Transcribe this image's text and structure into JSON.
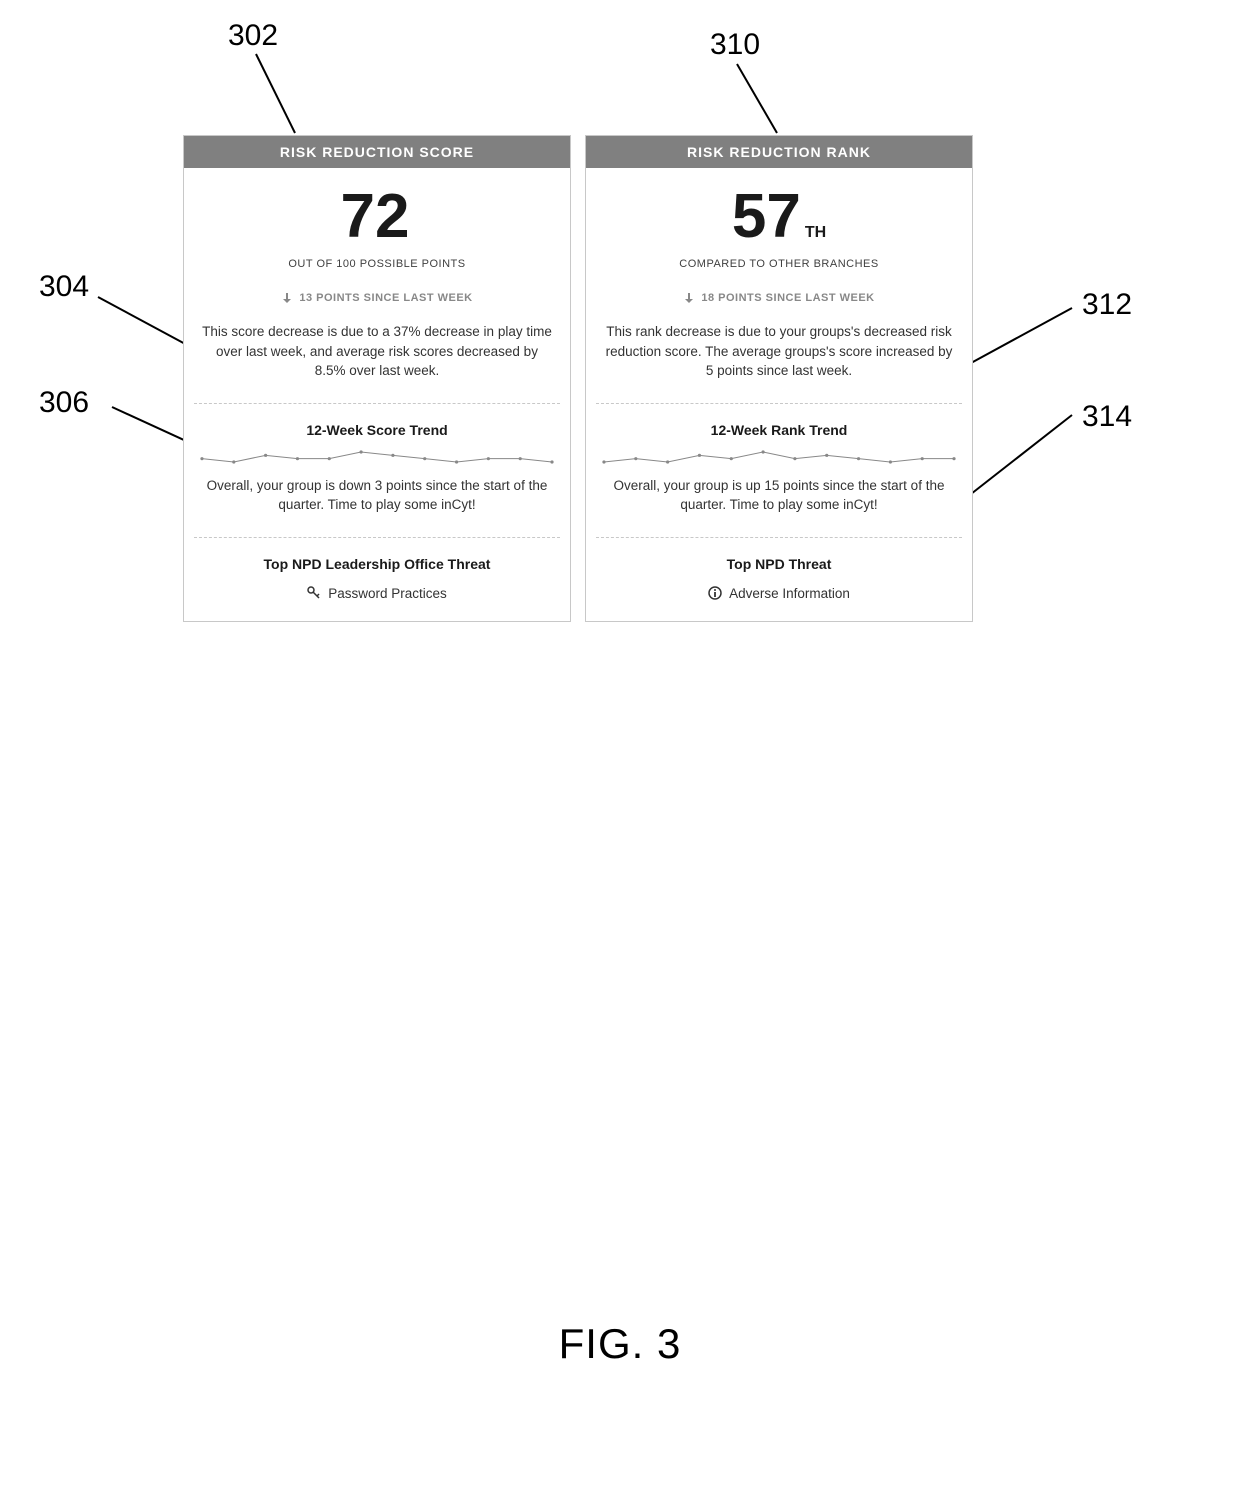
{
  "figure_caption": "FIG. 3",
  "callouts": {
    "c302": "302",
    "c304": "304",
    "c306": "306",
    "c310": "310",
    "c312": "312",
    "c314": "314"
  },
  "score_card": {
    "header": "RISK REDUCTION SCORE",
    "value": "72",
    "value_suffix": "",
    "subtitle": "OUT OF 100 POSSIBLE POINTS",
    "points_change": "13 POINTS SINCE LAST WEEK",
    "explanation": "This score decrease is due to a 37% decrease in play time over last week, and average risk scores decreased by 8.5% over last week.",
    "trend_title": "12-Week Score Trend",
    "trend_points": [
      72,
      71,
      73,
      72,
      72,
      74,
      73,
      72,
      71,
      72,
      72,
      71
    ],
    "trend_color": "#888888",
    "trend_text": "Overall, your group is down 3 points since the start of the quarter. Time to play some inCyt!",
    "threat_title": "Top NPD Leadership Office Threat",
    "threat_label": "Password Practices"
  },
  "rank_card": {
    "header": "RISK REDUCTION RANK",
    "value": "57",
    "value_suffix": "TH",
    "subtitle": "COMPARED TO OTHER BRANCHES",
    "points_change": "18 POINTS SINCE LAST WEEK",
    "explanation": "This rank decrease is due to your groups's decreased risk reduction score. The average groups's score increased by 5 points since last week.",
    "trend_title": "12-Week Rank Trend",
    "trend_points": [
      56,
      57,
      56,
      58,
      57,
      59,
      57,
      58,
      57,
      56,
      57,
      57
    ],
    "trend_color": "#888888",
    "trend_text": "Overall, your group is up 15 points since the start of the quarter. Time to play some inCyt!",
    "threat_title": "Top NPD Threat",
    "threat_label": "Adverse Information"
  },
  "colors": {
    "header_bg": "#808080",
    "header_fg": "#ffffff",
    "text_primary": "#1a1a1a",
    "text_body": "#333333",
    "text_muted": "#888888",
    "border": "#c8c8c8"
  }
}
